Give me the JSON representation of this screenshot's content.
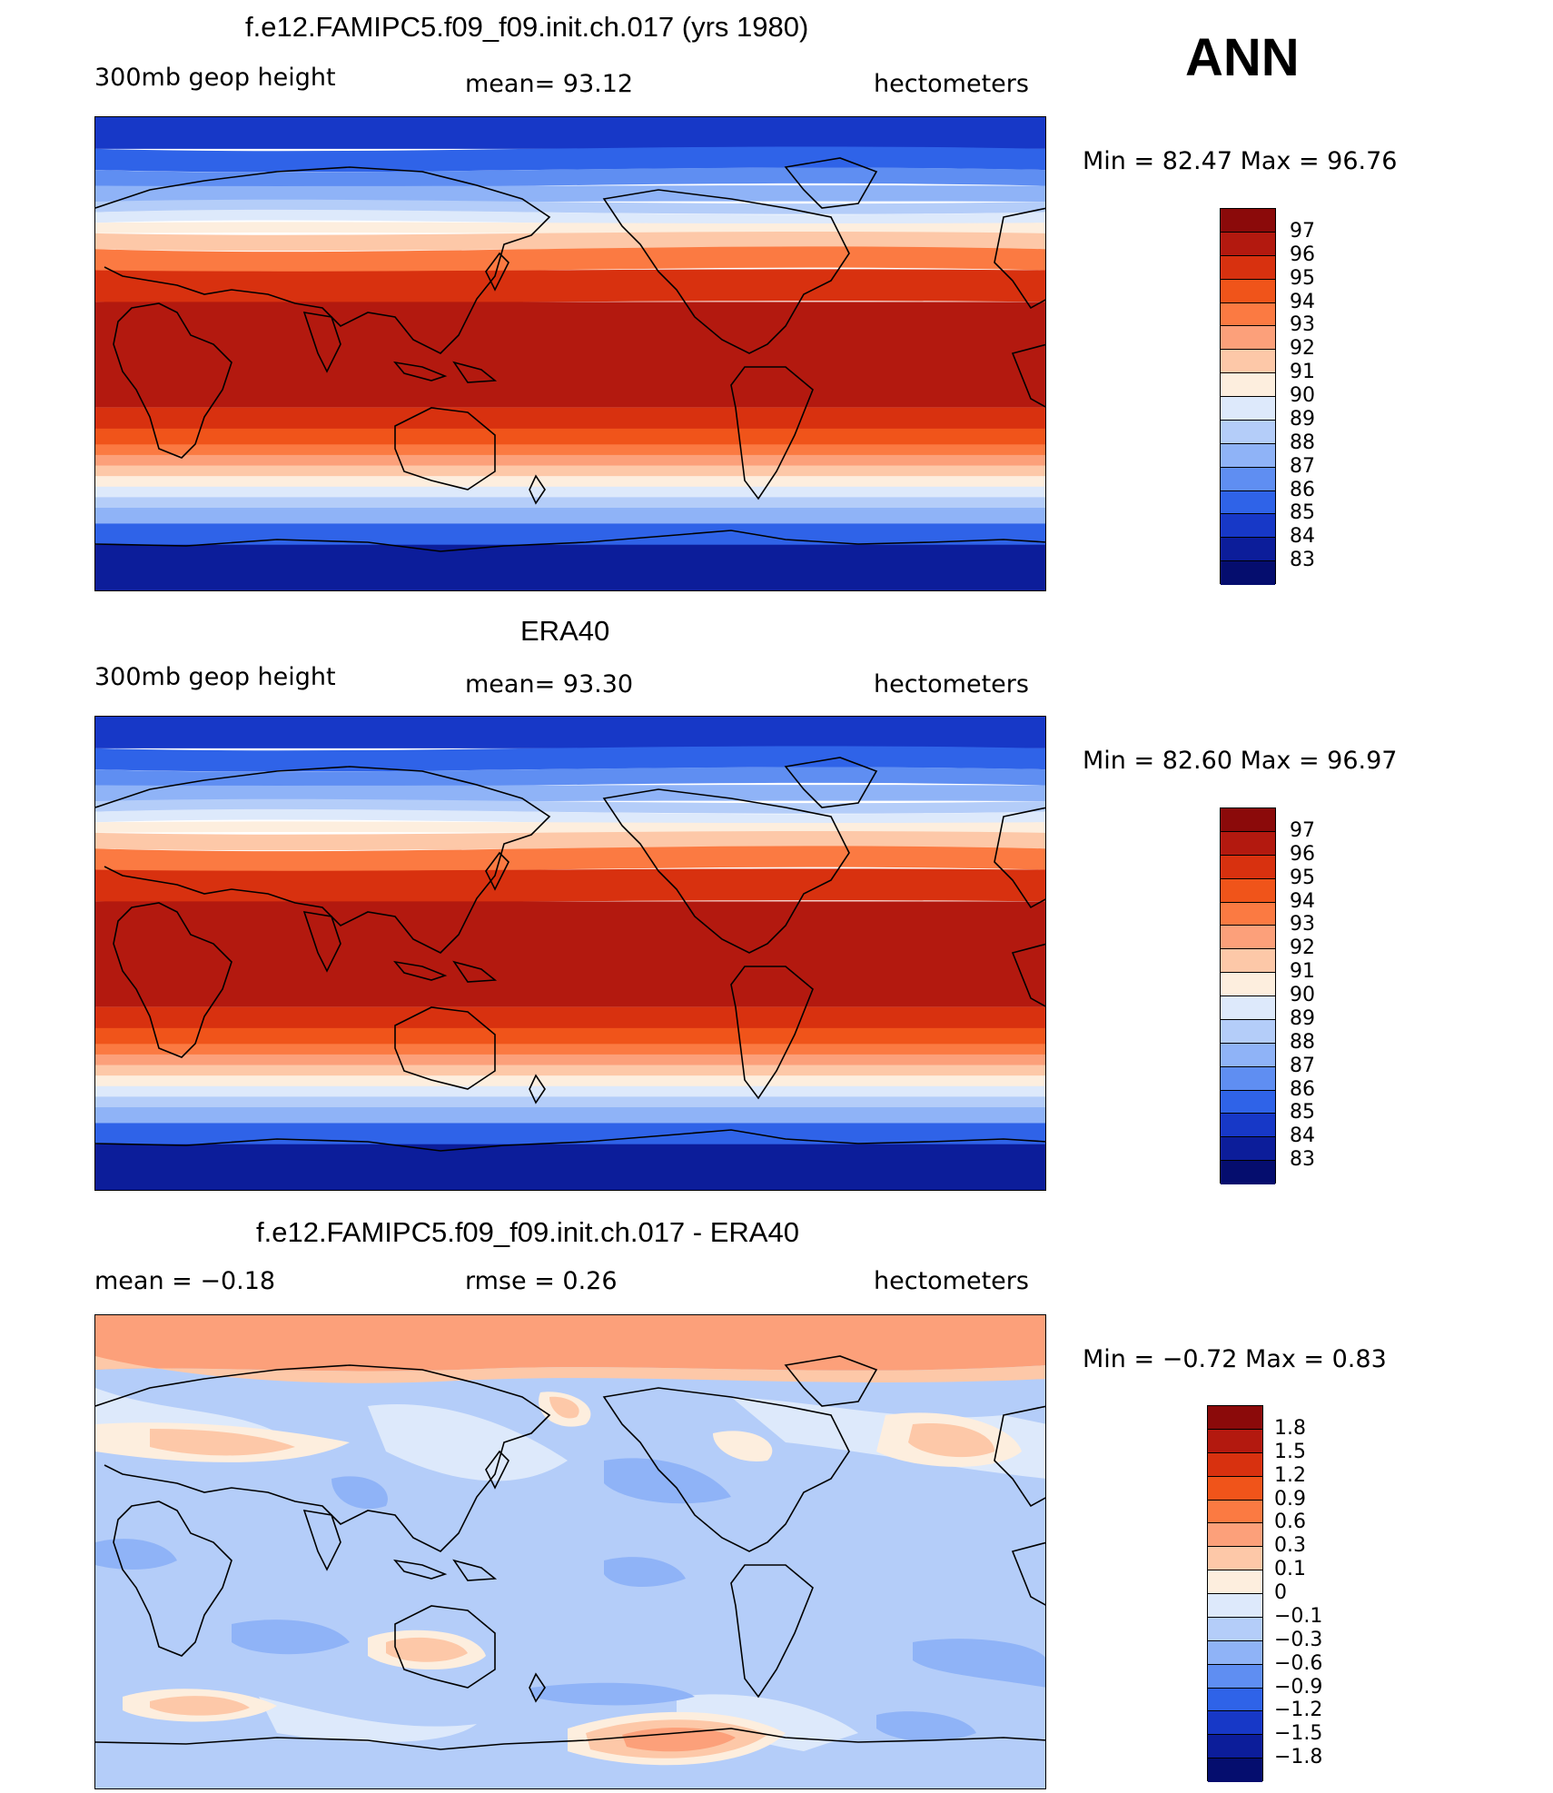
{
  "season": "ANN",
  "panels": [
    {
      "title": "f.e12.FAMIPC5.f09_f09.init.ch.017 (yrs 1980)",
      "left_label": "300mb  geop  height",
      "center_label": "mean=   93.12",
      "right_label": "hectometers",
      "minmax": "Min  =    82.47  Max  =    96.76",
      "colorbar": {
        "labels": [
          "97",
          "96",
          "95",
          "94",
          "93",
          "92",
          "91",
          "90",
          "89",
          "88",
          "87",
          "86",
          "85",
          "84",
          "83"
        ],
        "colors": [
          "#8b0a0a",
          "#b3190f",
          "#d8310f",
          "#f0541a",
          "#fb7a42",
          "#fca07a",
          "#fdc8a8",
          "#fdeede",
          "#dde9fb",
          "#b4cdf9",
          "#8fb3f7",
          "#5f8ef2",
          "#2f63e8",
          "#1738c7",
          "#0c1d9a",
          "#050d6e"
        ]
      },
      "map": {
        "type": "contour-fill",
        "variable": "300mb geop height",
        "units": "hectometers",
        "mean": 93.12,
        "min": 82.47,
        "max": 96.76,
        "contour_levels": [
          83,
          84,
          85,
          86,
          87,
          88,
          89,
          90,
          91,
          92,
          93,
          94,
          95,
          96,
          97
        ],
        "projection": "cylindrical equidistant, Pacific-centered",
        "pattern": "zonal: ~96-97 in tropics, decreasing poleward to ~83 near poles"
      }
    },
    {
      "title": "ERA40",
      "left_label": "300mb  geop  height",
      "center_label": "mean=   93.30",
      "right_label": "hectometers",
      "minmax": "Min  =    82.60  Max  =    96.97",
      "colorbar": {
        "labels": [
          "97",
          "96",
          "95",
          "94",
          "93",
          "92",
          "91",
          "90",
          "89",
          "88",
          "87",
          "86",
          "85",
          "84",
          "83"
        ],
        "colors": [
          "#8b0a0a",
          "#b3190f",
          "#d8310f",
          "#f0541a",
          "#fb7a42",
          "#fca07a",
          "#fdc8a8",
          "#fdeede",
          "#dde9fb",
          "#b4cdf9",
          "#8fb3f7",
          "#5f8ef2",
          "#2f63e8",
          "#1738c7",
          "#0c1d9a",
          "#050d6e"
        ]
      },
      "map": {
        "type": "contour-fill",
        "variable": "300mb geop height",
        "units": "hectometers",
        "mean": 93.3,
        "min": 82.6,
        "max": 96.97,
        "contour_levels": [
          83,
          84,
          85,
          86,
          87,
          88,
          89,
          90,
          91,
          92,
          93,
          94,
          95,
          96,
          97
        ],
        "projection": "cylindrical equidistant, Pacific-centered",
        "pattern": "zonal: ~96-97 in tropics, decreasing poleward to ~83 near poles"
      }
    },
    {
      "title": "f.e12.FAMIPC5.f09_f09.init.ch.017 - ERA40",
      "left_label": "mean  =    −0.18",
      "center_label": "rmse  =     0.26",
      "right_label": "hectometers",
      "minmax": "Min  =    −0.72  Max  =     0.83",
      "colorbar": {
        "labels": [
          "1.8",
          "1.5",
          "1.2",
          "0.9",
          "0.6",
          "0.3",
          "0.1",
          "0",
          "−0.1",
          "−0.3",
          "−0.6",
          "−0.9",
          "−1.2",
          "−1.5",
          "−1.8"
        ],
        "colors": [
          "#8b0a0a",
          "#b3190f",
          "#d8310f",
          "#f0541a",
          "#fb7a42",
          "#fca07a",
          "#fdc8a8",
          "#fdeede",
          "#dde9fb",
          "#b4cdf9",
          "#8fb3f7",
          "#5f8ef2",
          "#2f63e8",
          "#1738c7",
          "#0c1d9a",
          "#050d6e"
        ]
      },
      "map": {
        "type": "contour-fill",
        "variable": "difference",
        "units": "hectometers",
        "mean": -0.18,
        "rmse": 0.26,
        "min": -0.72,
        "max": 0.83,
        "contour_levels": [
          -1.8,
          -1.5,
          -1.2,
          -0.9,
          -0.6,
          -0.3,
          -0.1,
          0,
          0.1,
          0.3,
          0.6,
          0.9,
          1.2,
          1.5,
          1.8
        ],
        "projection": "cylindrical equidistant, Pacific-centered",
        "pattern": "mostly -0.1 to -0.3; positive 0.3-0.6 over Arctic, South Pacific near Antarctica; positive patches Eurasia, N. Atlantic, Australia"
      }
    }
  ]
}
